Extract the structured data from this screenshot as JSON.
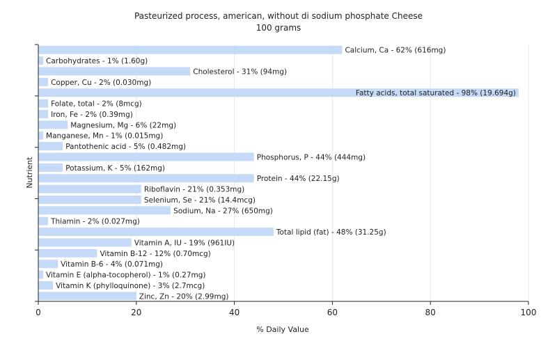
{
  "chart_data": {
    "type": "bar",
    "orientation": "horizontal",
    "title": "Pasteurized process, american, without di sodium phosphate Cheese",
    "subtitle": "100 grams",
    "xlabel": "% Daily Value",
    "ylabel": "Nutrient",
    "xlim": [
      0,
      100
    ],
    "xticks": [
      0,
      20,
      40,
      60,
      80,
      100
    ],
    "grid": true,
    "colors": {
      "bar": "#c5daf6",
      "grid": "#e8e8e8",
      "axis": "#222222"
    },
    "bars": [
      {
        "value": 62,
        "label": "Calcium, Ca - 62% (616mg)"
      },
      {
        "value": 1,
        "label": "Carbohydrates - 1% (1.60g)"
      },
      {
        "value": 31,
        "label": "Cholesterol - 31% (94mg)"
      },
      {
        "value": 2,
        "label": "Copper, Cu - 2% (0.030mg)"
      },
      {
        "value": 98,
        "label": "Fatty acids, total saturated - 98% (19.694g)"
      },
      {
        "value": 2,
        "label": "Folate, total - 2% (8mcg)"
      },
      {
        "value": 2,
        "label": "Iron, Fe - 2% (0.39mg)"
      },
      {
        "value": 6,
        "label": "Magnesium, Mg - 6% (22mg)"
      },
      {
        "value": 1,
        "label": "Manganese, Mn - 1% (0.015mg)"
      },
      {
        "value": 5,
        "label": "Pantothenic acid - 5% (0.482mg)"
      },
      {
        "value": 44,
        "label": "Phosphorus, P - 44% (444mg)"
      },
      {
        "value": 5,
        "label": "Potassium, K - 5% (162mg)"
      },
      {
        "value": 44,
        "label": "Protein - 44% (22.15g)"
      },
      {
        "value": 21,
        "label": "Riboflavin - 21% (0.353mg)"
      },
      {
        "value": 21,
        "label": "Selenium, Se - 21% (14.4mcg)"
      },
      {
        "value": 27,
        "label": "Sodium, Na - 27% (650mg)"
      },
      {
        "value": 2,
        "label": "Thiamin - 2% (0.027mg)"
      },
      {
        "value": 48,
        "label": "Total lipid (fat) - 48% (31.25g)"
      },
      {
        "value": 19,
        "label": "Vitamin A, IU - 19% (961IU)"
      },
      {
        "value": 12,
        "label": "Vitamin B-12 - 12% (0.70mcg)"
      },
      {
        "value": 4,
        "label": "Vitamin B-6 - 4% (0.071mg)"
      },
      {
        "value": 1,
        "label": "Vitamin E (alpha-tocopherol) - 1% (0.27mg)"
      },
      {
        "value": 3,
        "label": "Vitamin K (phylloquinone) - 3% (2.7mcg)"
      },
      {
        "value": 20,
        "label": "Zinc, Zn - 20% (2.99mg)"
      }
    ]
  }
}
